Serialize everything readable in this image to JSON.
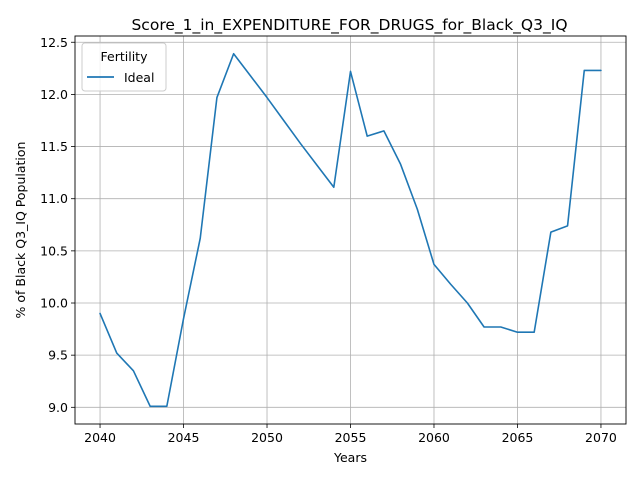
{
  "chart_data": {
    "type": "line",
    "title": "Score_1_in_EXPENDITURE_FOR_DRUGS_for_Black_Q3_IQ",
    "xlabel": "Years",
    "ylabel": "% of Black Q3_IQ Population",
    "xlim": [
      2038.5,
      2071.5
    ],
    "ylim": [
      8.84,
      12.56
    ],
    "x_ticks": [
      2040,
      2045,
      2050,
      2055,
      2060,
      2065,
      2070
    ],
    "y_ticks": [
      9.0,
      9.5,
      10.0,
      10.5,
      11.0,
      11.5,
      12.0,
      12.5
    ],
    "grid": true,
    "legend": {
      "title": "Fertility",
      "placement": "top-left"
    },
    "series": [
      {
        "name": "Ideal",
        "color": "#1f77b4",
        "x": [
          2040,
          2041,
          2042,
          2043,
          2044,
          2045,
          2046,
          2047,
          2048,
          2049,
          2050,
          2051,
          2052,
          2053,
          2054,
          2055,
          2056,
          2057,
          2058,
          2059,
          2060,
          2061,
          2062,
          2063,
          2064,
          2065,
          2066,
          2067,
          2068,
          2069,
          2070
        ],
        "y": [
          9.9,
          9.52,
          9.35,
          9.01,
          9.01,
          9.85,
          10.62,
          11.97,
          12.39,
          12.18,
          11.97,
          11.75,
          11.53,
          11.32,
          11.11,
          12.22,
          11.6,
          11.65,
          11.33,
          10.9,
          10.37,
          10.18,
          10.0,
          9.77,
          9.77,
          9.72,
          9.72,
          10.68,
          10.74,
          12.23,
          12.23
        ]
      }
    ]
  }
}
